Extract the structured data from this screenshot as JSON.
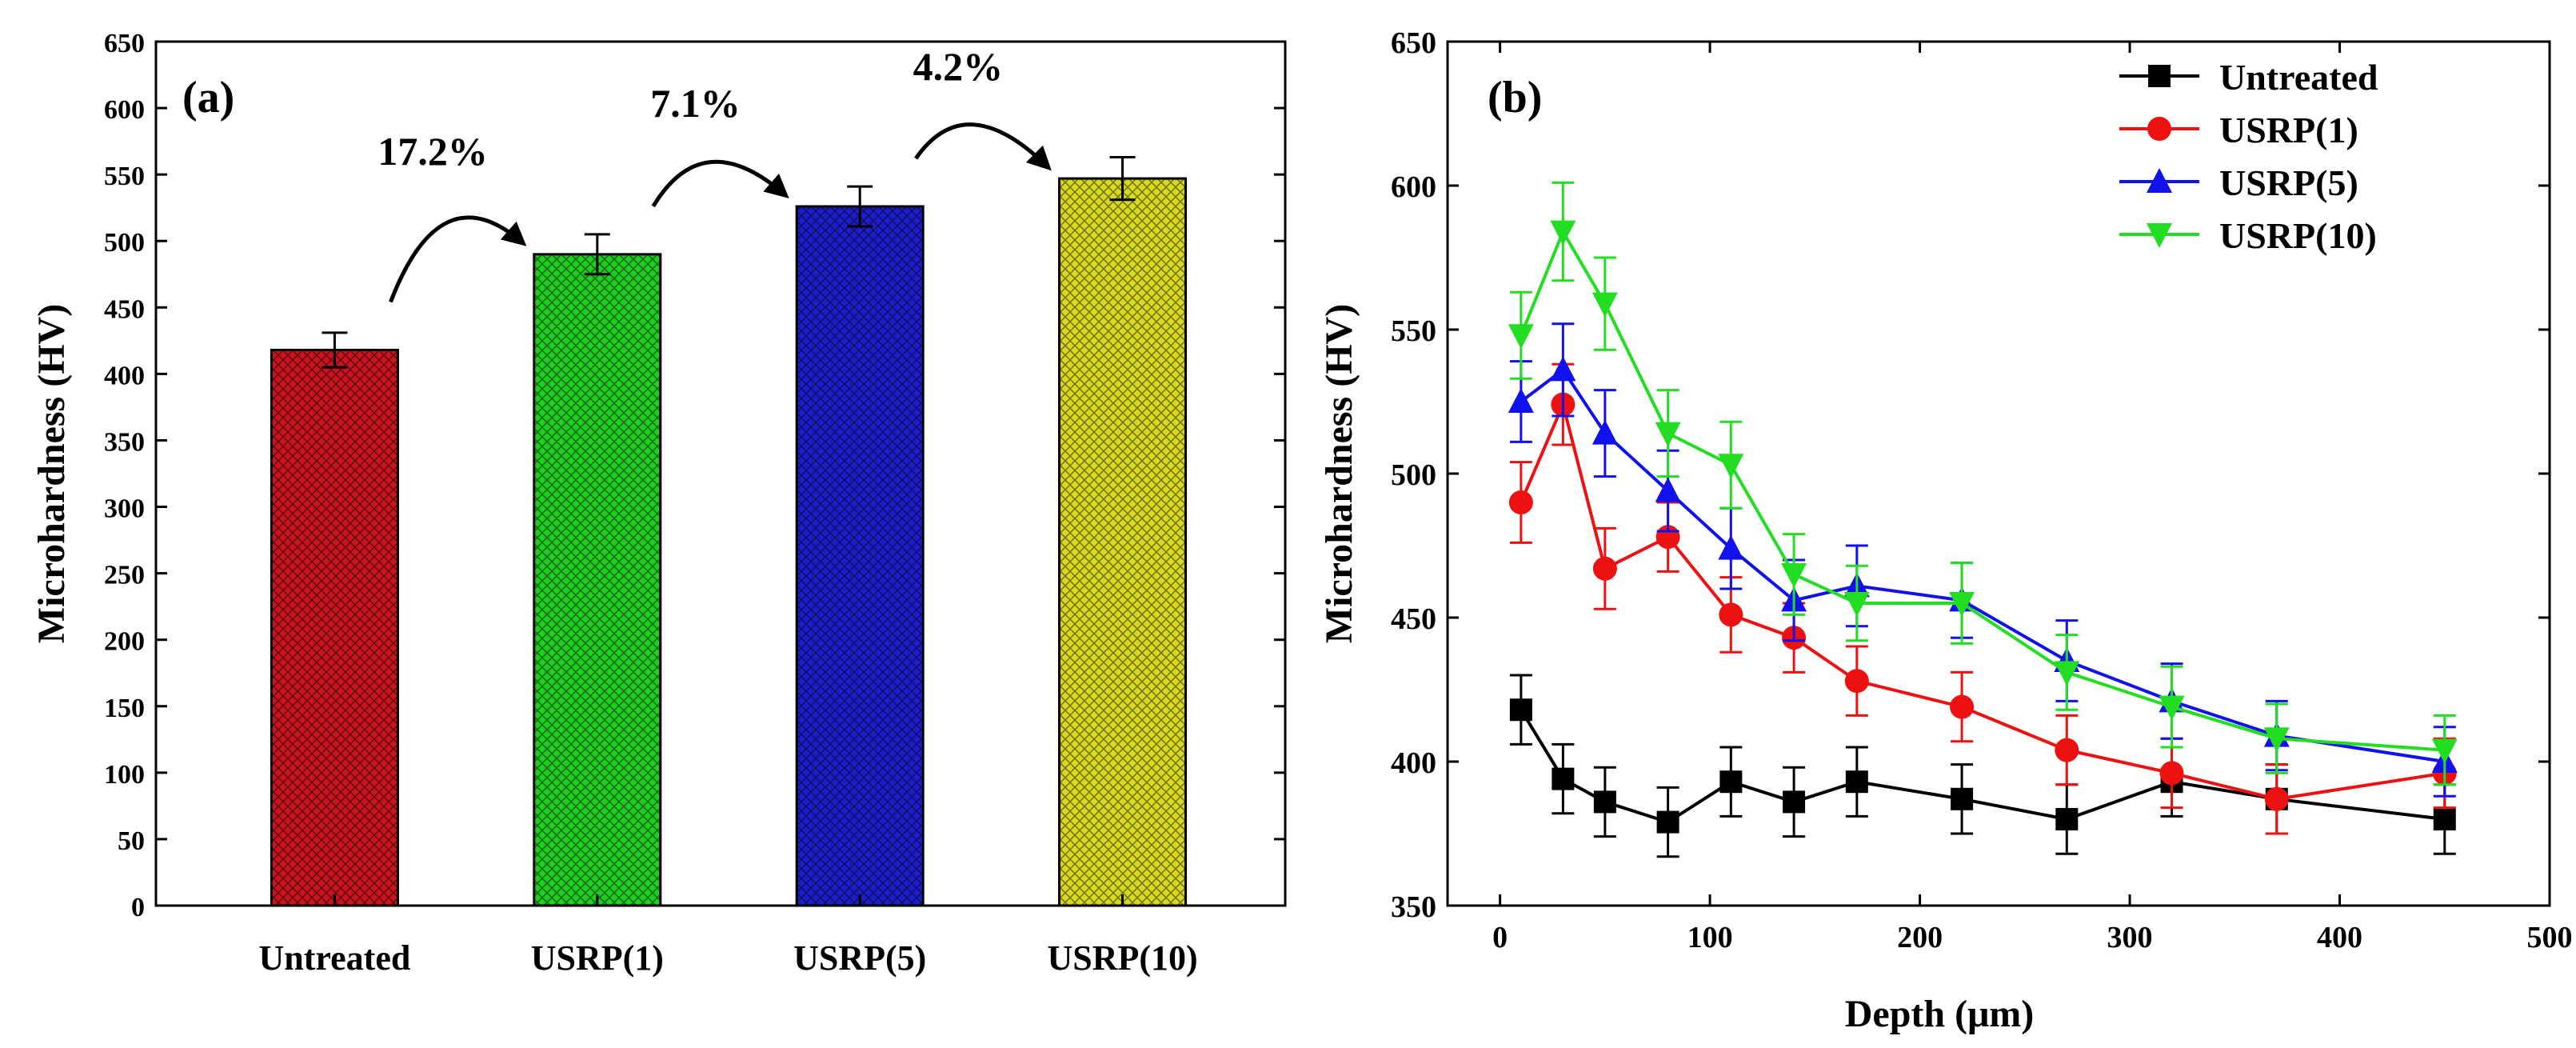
{
  "chart_data": [
    {
      "type": "bar",
      "panel_label": "(a)",
      "title": "",
      "xlabel": "",
      "ylabel": "Microhardness (HV)",
      "ylim": [
        0,
        650
      ],
      "yticks": [
        0,
        50,
        100,
        150,
        200,
        250,
        300,
        350,
        400,
        450,
        500,
        550,
        600,
        650
      ],
      "categories": [
        "Untreated",
        "USRP(1)",
        "USRP(5)",
        "USRP(10)"
      ],
      "values": [
        418,
        490,
        526,
        547
      ],
      "errors": [
        13,
        15,
        15,
        16
      ],
      "colors": [
        "#c8141e",
        "#22cc22",
        "#1e1ec8",
        "#d8d820"
      ],
      "annotations": [
        {
          "text": "17.2%",
          "from": "Untreated",
          "to": "USRP(1)"
        },
        {
          "text": "7.1%",
          "from": "USRP(1)",
          "to": "USRP(5)"
        },
        {
          "text": "4.2%",
          "from": "USRP(5)",
          "to": "USRP(10)"
        }
      ]
    },
    {
      "type": "line",
      "panel_label": "(b)",
      "title": "",
      "xlabel": "Depth (μm)",
      "ylabel": "Microhardness (HV)",
      "xlim": [
        -25,
        500
      ],
      "ylim": [
        350,
        650
      ],
      "xticks": [
        0,
        100,
        200,
        300,
        400,
        500
      ],
      "yticks": [
        350,
        400,
        450,
        500,
        550,
        600,
        650
      ],
      "legend_position": "top-right",
      "x": [
        10,
        30,
        50,
        80,
        110,
        140,
        170,
        220,
        270,
        320,
        370,
        450
      ],
      "series": [
        {
          "name": "Untreated",
          "color": "#000000",
          "marker": "square",
          "values": [
            418,
            394,
            386,
            379,
            393,
            386,
            393,
            387,
            380,
            393,
            387,
            380
          ],
          "errors": [
            12,
            12,
            12,
            12,
            12,
            12,
            12,
            12,
            12,
            12,
            12,
            12
          ]
        },
        {
          "name": "USRP(1)",
          "color": "#ee1111",
          "marker": "circle",
          "values": [
            490,
            524,
            467,
            478,
            451,
            443,
            428,
            419,
            404,
            396,
            387,
            396
          ],
          "errors": [
            14,
            14,
            14,
            12,
            13,
            12,
            12,
            12,
            12,
            12,
            12,
            12
          ]
        },
        {
          "name": "USRP(5)",
          "color": "#1111ee",
          "marker": "triangle-up",
          "values": [
            525,
            536,
            514,
            494,
            474,
            456,
            461,
            456,
            435,
            421,
            409,
            400
          ],
          "errors": [
            14,
            16,
            15,
            14,
            14,
            14,
            14,
            13,
            14,
            13,
            12,
            12
          ]
        },
        {
          "name": "USRP(10)",
          "color": "#22dd22",
          "marker": "triangle-down",
          "values": [
            548,
            584,
            559,
            514,
            503,
            465,
            455,
            455,
            431,
            419,
            408,
            404
          ],
          "errors": [
            15,
            17,
            16,
            15,
            15,
            14,
            13,
            14,
            13,
            14,
            12,
            12
          ]
        }
      ]
    }
  ]
}
